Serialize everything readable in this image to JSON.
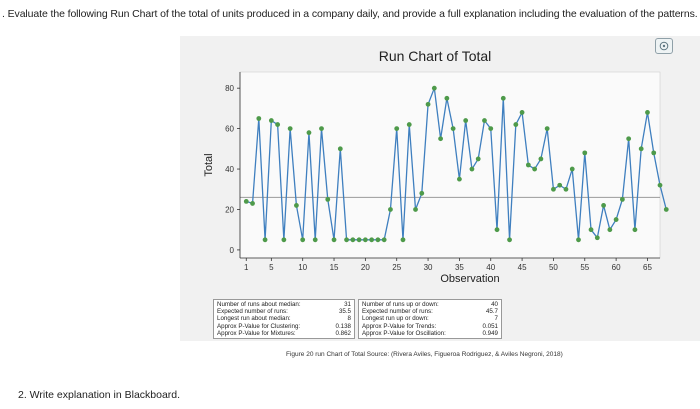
{
  "question_text": ". Evaluate the following Run Chart of the total of units produced in a company daily, and provide a full explanation including the evaluation of the patterns.",
  "prompt_text": "2. Write explanation in Blackboard.",
  "figure_caption": "Figure 20 run Chart of Total Source: (Rivera Aviles, Figueroa Rodriguez, & Aviles Negroni, 2018)",
  "stats_left": [
    {
      "label": "Number of runs about median:",
      "value": "31"
    },
    {
      "label": "Expected number of runs:",
      "value": "35.5"
    },
    {
      "label": "Longest run about median:",
      "value": "8"
    },
    {
      "label": "Approx P-Value for Clustering:",
      "value": "0.138"
    },
    {
      "label": "Approx P-Value for Mixtures:",
      "value": "0.862"
    }
  ],
  "stats_right": [
    {
      "label": "Number of runs up or down:",
      "value": "40"
    },
    {
      "label": "Expected number of runs:",
      "value": "45.7"
    },
    {
      "label": "Longest run up or down:",
      "value": "7"
    },
    {
      "label": "Approx P-Value for Trends:",
      "value": "0.051"
    },
    {
      "label": "Approx P-Value for Oscillation:",
      "value": "0.949"
    }
  ],
  "colors": {
    "line": "#3f7fbf",
    "point": "#4e9a4a",
    "median": "#9a9a9a",
    "axis": "#333333"
  },
  "chart_data": {
    "type": "line",
    "title": "Run Chart of Total",
    "xlabel": "Observation",
    "ylabel": "Total",
    "xlim": [
      0,
      67
    ],
    "ylim": [
      -4,
      88
    ],
    "x_ticks": [
      1,
      5,
      10,
      15,
      20,
      25,
      30,
      35,
      40,
      45,
      50,
      55,
      60,
      65
    ],
    "y_ticks": [
      0,
      20,
      40,
      60,
      80
    ],
    "median": 26,
    "series": [
      {
        "values": [
          24,
          23,
          65,
          5,
          64,
          62,
          5,
          60,
          22,
          5,
          58,
          5,
          60,
          25,
          5,
          50,
          5,
          5,
          5,
          5,
          5,
          5,
          5,
          20,
          60,
          5,
          62,
          20,
          28,
          72,
          80,
          55,
          75,
          60,
          35,
          64,
          40,
          45,
          64,
          60,
          10,
          75,
          5,
          62,
          68,
          42,
          40,
          45,
          60,
          30,
          32,
          30,
          40,
          5,
          48,
          10,
          6,
          22,
          10,
          15,
          25,
          55,
          10,
          50,
          68,
          48,
          32,
          20
        ]
      }
    ]
  }
}
